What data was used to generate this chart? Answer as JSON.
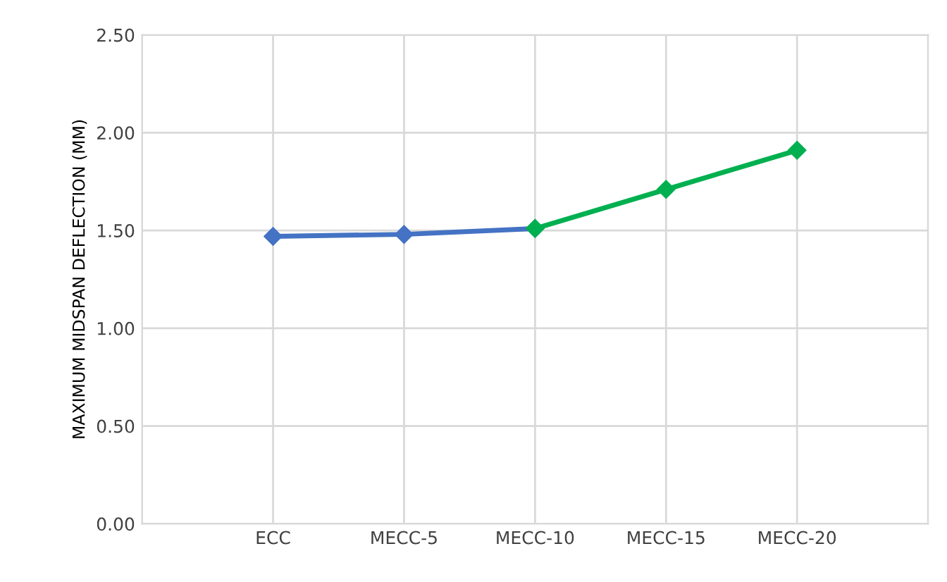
{
  "chart_data": {
    "type": "line",
    "ylabel": "MAXIMUM MIDSPAN DEFLECTION (MM)",
    "categories": [
      null,
      "ECC",
      "MECC-5",
      "MECC-10",
      "MECC-15",
      "MECC-20",
      null
    ],
    "series": [
      {
        "color": "#4472c4",
        "values": [
          null,
          1.47,
          1.48,
          1.51,
          null,
          null,
          null
        ]
      },
      {
        "color": "#00b050",
        "values": [
          null,
          null,
          null,
          1.51,
          1.71,
          1.91,
          null
        ]
      }
    ],
    "ylim": [
      0,
      2.5
    ],
    "yticks": [
      {
        "value": 0,
        "label": "0.00"
      },
      {
        "value": 0.5,
        "label": "0.50"
      },
      {
        "value": 1,
        "label": "1.00"
      },
      {
        "value": 1.5,
        "label": "1.50"
      },
      {
        "value": 2,
        "label": "2.00"
      },
      {
        "value": 2.5,
        "label": "2.50"
      }
    ],
    "grid": true,
    "marker": "diamond",
    "line_style": "solid"
  }
}
